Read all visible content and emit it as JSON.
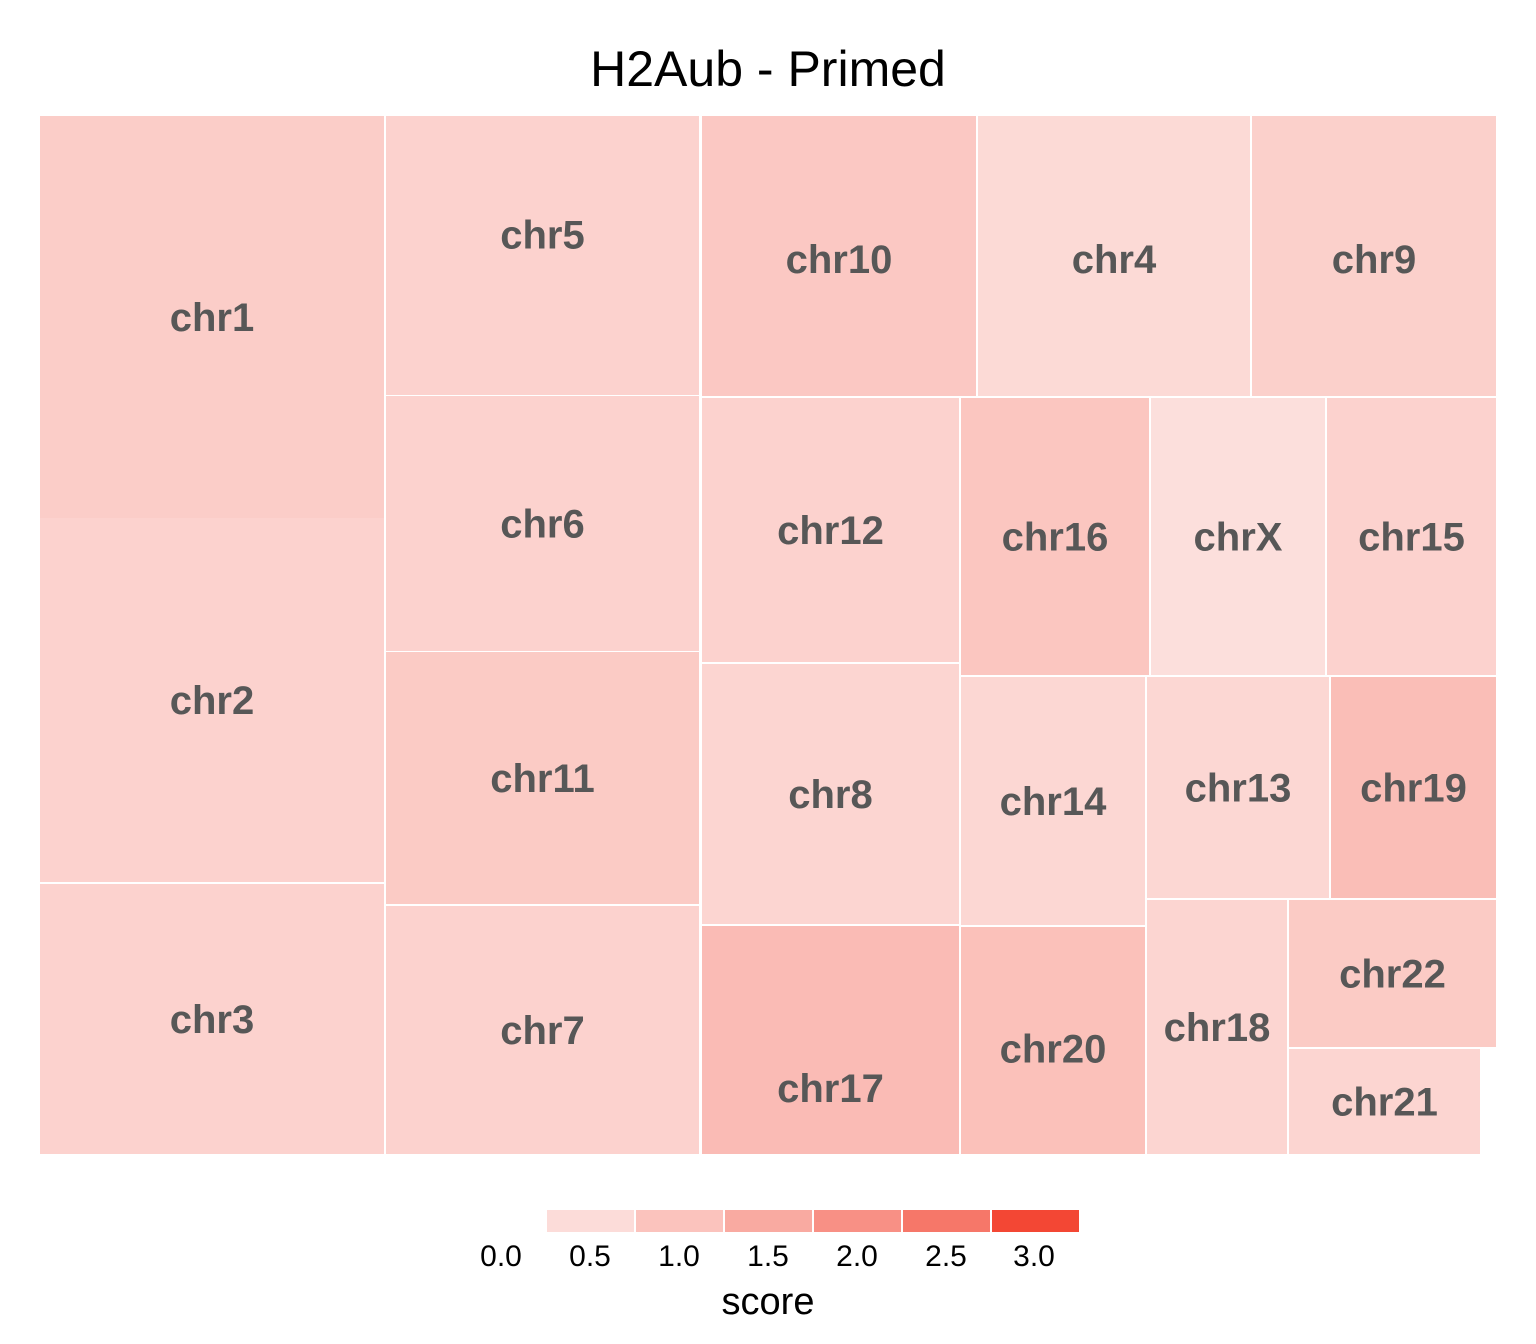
{
  "chart_data": {
    "type": "treemap",
    "title": "H2Aub - Primed",
    "color_scale": {
      "low": "#fde9e7",
      "high": "#f34734",
      "domain": [
        0,
        3.2
      ],
      "ticks": [
        "0.0",
        "0.5",
        "1.0",
        "1.5",
        "2.0",
        "2.5",
        "3.0"
      ]
    },
    "legend": {
      "title": "score",
      "placement": "bottom"
    },
    "tiles": [
      {
        "label": "chr1",
        "score": 0.55
      },
      {
        "label": "chr2",
        "score": 0.45
      },
      {
        "label": "chr3",
        "score": 0.45
      },
      {
        "label": "chr5",
        "score": 0.45
      },
      {
        "label": "chr6",
        "score": 0.45
      },
      {
        "label": "chr11",
        "score": 0.6
      },
      {
        "label": "chr7",
        "score": 0.45
      },
      {
        "label": "chr10",
        "score": 0.65
      },
      {
        "label": "chr4",
        "score": 0.3
      },
      {
        "label": "chr9",
        "score": 0.5
      },
      {
        "label": "chr12",
        "score": 0.45
      },
      {
        "label": "chr8",
        "score": 0.4
      },
      {
        "label": "chr17",
        "score": 0.9
      },
      {
        "label": "chr16",
        "score": 0.7
      },
      {
        "label": "chrX",
        "score": 0.2
      },
      {
        "label": "chr15",
        "score": 0.45
      },
      {
        "label": "chr14",
        "score": 0.35
      },
      {
        "label": "chr20",
        "score": 0.8
      },
      {
        "label": "chr13",
        "score": 0.35
      },
      {
        "label": "chr19",
        "score": 0.85
      },
      {
        "label": "chr18",
        "score": 0.4
      },
      {
        "label": "chr22",
        "score": 0.6
      },
      {
        "label": "chr21",
        "score": 0.4
      }
    ]
  }
}
